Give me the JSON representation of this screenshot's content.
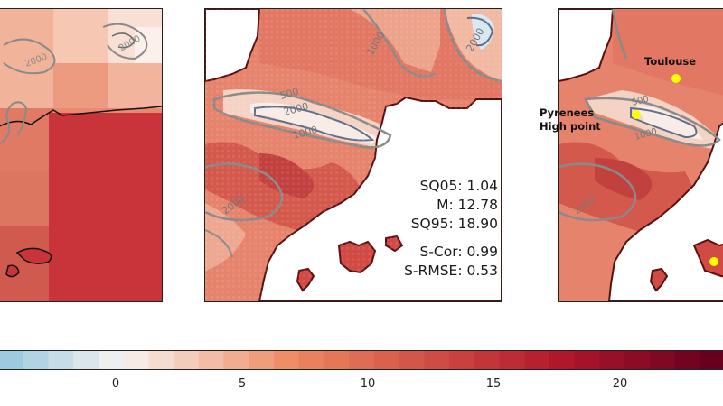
{
  "map_panels": {
    "middle": {
      "stats": {
        "sq05": "SQ05: 1.04",
        "m": "M: 12.78",
        "sq95": "SQ95: 18.90",
        "s_cor": "S-Cor: 0.99",
        "s_rmse": "S-RMSE: 0.53"
      }
    },
    "right": {
      "locations": {
        "toulouse": "Toulouse",
        "pyrenees_line1": "Pyrenees",
        "pyrenees_line2": "High point"
      }
    }
  },
  "contour_labels": [
    "500",
    "1000",
    "2000"
  ],
  "colorbar": {
    "ticks": [
      "0",
      "5",
      "10",
      "15",
      "20"
    ],
    "colors": {
      "cold": "#9ecae1",
      "neutral": "#f7f4f0",
      "warm": "#ef8a62",
      "hot": "#b2182b",
      "hottest": "#67001f",
      "marker": "#ffff00",
      "contour": "#8a8a8a"
    }
  }
}
